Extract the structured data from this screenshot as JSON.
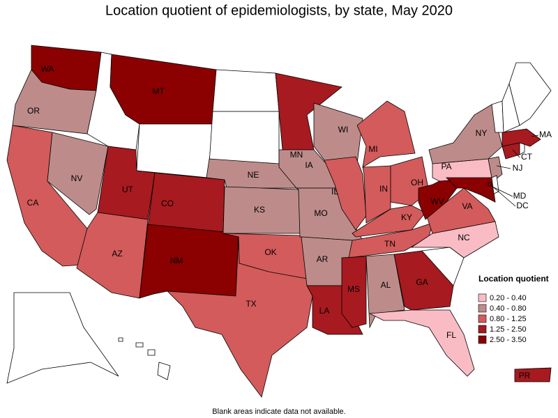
{
  "title": "Location quotient of epidemiologists, by state, May 2020",
  "legend": {
    "title": "Location quotient",
    "items": [
      {
        "label": "0.20 - 0.40",
        "color": "#f9bcc5",
        "states": [
          "PA",
          "NC",
          "FL"
        ]
      },
      {
        "label": "0.40 - 0.80",
        "color": "#bd8c8a",
        "states": [
          "OR",
          "NV",
          "NE",
          "KS",
          "IA",
          "MO",
          "AR",
          "WI",
          "NY",
          "AL",
          "NJ"
        ]
      },
      {
        "label": "0.80 - 1.25",
        "color": "#d35b5b",
        "states": [
          "CA",
          "AZ",
          "TX",
          "OK",
          "IL",
          "IN",
          "OH",
          "MI",
          "KY",
          "TN",
          "VA"
        ]
      },
      {
        "label": "1.25 - 2.50",
        "color": "#a71a20",
        "states": [
          "UT",
          "CO",
          "MN",
          "LA",
          "MS",
          "GA",
          "CT",
          "MA",
          "PR"
        ]
      },
      {
        "label": "2.50 - 3.50",
        "color": "#8b0000",
        "states": [
          "WA",
          "MT",
          "NM",
          "WV",
          "MD",
          "DC"
        ]
      }
    ]
  },
  "footnote": "Blank areas indicate data not available."
}
